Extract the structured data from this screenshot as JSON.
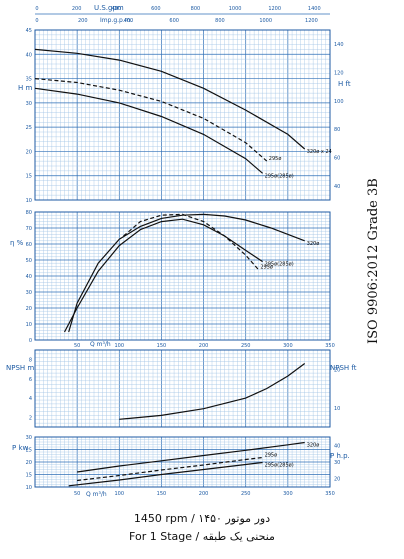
{
  "standard_label": "ISO 9906:2012 Grade 3B",
  "caption_line1": "1450 rpm / ۱۴۵۰ دور موتور",
  "caption_line2": "For 1 Stage / منحنی یک طبقه",
  "top_axes": {
    "usgpm_label": "U.S.gpm",
    "usgpm_ticks": [
      "0",
      "200",
      "400",
      "600",
      "800",
      "1000",
      "1200",
      "1400"
    ],
    "impgpm_label": "Imp.g.p.m.",
    "impgpm_ticks": [
      "0",
      "200",
      "400",
      "600",
      "800",
      "1000",
      "1200"
    ]
  },
  "flow_axis": {
    "label": "Q m³/h",
    "ticks": [
      "50",
      "100",
      "150",
      "200",
      "250",
      "300",
      "350"
    ]
  },
  "colors": {
    "grid": "#2f6fb6",
    "grid_minor": "#9fc3e4",
    "curve": "#111111"
  },
  "chart_data": [
    {
      "type": "line",
      "panel": "head",
      "ylabel_left": "H m",
      "ylabel_right": "H ft",
      "ylim": [
        10,
        45
      ],
      "yticks_left": [
        "10",
        "15",
        "20",
        "25",
        "30",
        "35",
        "40",
        "45"
      ],
      "yticks_right": [
        "40",
        "60",
        "80",
        "100",
        "120",
        "140"
      ],
      "xlim": [
        0,
        350
      ],
      "series": [
        {
          "name": "320ø x 24",
          "style": "solid",
          "x": [
            0,
            50,
            100,
            150,
            200,
            250,
            300,
            320
          ],
          "values": [
            41,
            40.2,
            38.8,
            36.5,
            33,
            28.5,
            23.5,
            20.5
          ]
        },
        {
          "name": "295ø",
          "style": "dashed",
          "x": [
            0,
            50,
            100,
            150,
            200,
            250,
            275
          ],
          "values": [
            35,
            34.2,
            32.6,
            30.3,
            26.8,
            21.8,
            18
          ]
        },
        {
          "name": "295ø(285ø)",
          "style": "solid",
          "x": [
            0,
            50,
            100,
            150,
            200,
            250,
            270
          ],
          "values": [
            33,
            31.8,
            30,
            27.2,
            23.5,
            18.5,
            15.5
          ]
        }
      ]
    },
    {
      "type": "line",
      "panel": "efficiency",
      "ylabel_left": "η %",
      "ylim": [
        0,
        80
      ],
      "yticks_left": [
        "0",
        "10",
        "20",
        "30",
        "40",
        "50",
        "60",
        "70",
        "80"
      ],
      "xlim": [
        0,
        350
      ],
      "series": [
        {
          "name": "320ø",
          "style": "solid",
          "x": [
            40,
            50,
            75,
            100,
            125,
            150,
            175,
            200,
            225,
            250,
            280,
            320
          ],
          "values": [
            5,
            23,
            48,
            63,
            71,
            76,
            78,
            78.5,
            77.5,
            75,
            70,
            62
          ]
        },
        {
          "name": "295ø",
          "style": "dashed",
          "x": [
            105,
            125,
            150,
            175,
            200,
            225,
            250,
            265
          ],
          "values": [
            65,
            74,
            78,
            78.5,
            74,
            65,
            53,
            44
          ]
        },
        {
          "name": "295ø(285ø)",
          "style": "solid",
          "x": [
            35,
            50,
            75,
            100,
            125,
            150,
            175,
            200,
            225,
            250,
            270
          ],
          "values": [
            5,
            20,
            43,
            59,
            69,
            74,
            75.5,
            72,
            65,
            56,
            49
          ]
        }
      ]
    },
    {
      "type": "line",
      "panel": "npsh",
      "ylabel_left": "NPSH m",
      "ylabel_right": "NPSH ft",
      "ylim": [
        1,
        9
      ],
      "yticks_left": [
        "2",
        "4",
        "6",
        "8"
      ],
      "yticks_right": [
        "10",
        "20"
      ],
      "xlim": [
        0,
        350
      ],
      "series": [
        {
          "name": "NPSH",
          "style": "solid",
          "x": [
            100,
            150,
            200,
            250,
            275,
            300,
            320
          ],
          "values": [
            1.8,
            2.2,
            2.9,
            4,
            5,
            6.3,
            7.6
          ]
        }
      ]
    },
    {
      "type": "line",
      "panel": "power",
      "ylabel_left": "P kw",
      "ylabel_right": "P h.p.",
      "ylim": [
        10,
        30
      ],
      "yticks_left": [
        "10",
        "15",
        "20",
        "25",
        "30"
      ],
      "yticks_right": [
        "20",
        "30",
        "40"
      ],
      "xlim": [
        0,
        350
      ],
      "series": [
        {
          "name": "320ø",
          "style": "solid",
          "x": [
            50,
            100,
            150,
            200,
            250,
            300,
            320
          ],
          "values": [
            16,
            18.4,
            20.5,
            22.6,
            24.7,
            26.9,
            27.8
          ]
        },
        {
          "name": "295ø",
          "style": "dashed",
          "x": [
            50,
            100,
            150,
            200,
            250,
            270
          ],
          "values": [
            12.6,
            14.6,
            16.8,
            18.8,
            21,
            21.8
          ]
        },
        {
          "name": "295ø(285ø)",
          "style": "solid",
          "x": [
            40,
            100,
            150,
            200,
            250,
            270
          ],
          "values": [
            10.5,
            12.8,
            15,
            17,
            19,
            19.8
          ]
        }
      ]
    }
  ]
}
